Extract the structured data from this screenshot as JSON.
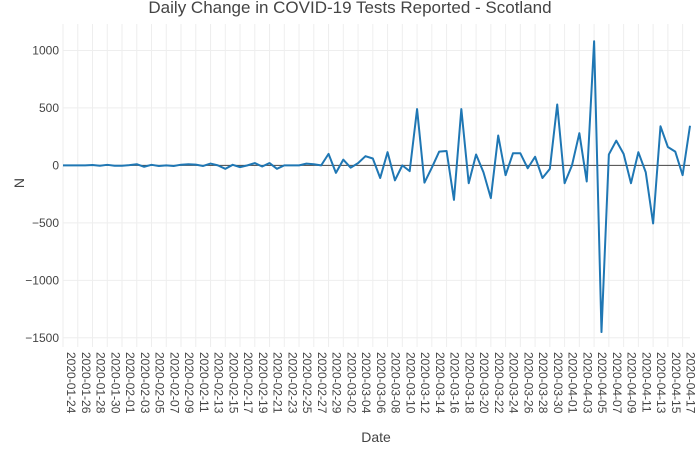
{
  "chart_data": {
    "type": "line",
    "title": "Daily Change in COVID-19 Tests Reported - Scotland",
    "xlabel": "Date",
    "ylabel": "N",
    "start_date": "2020-01-24",
    "end_date": "2020-04-18",
    "ylim": [
      -1580,
      1230
    ],
    "yticks": [
      -1500,
      -1000,
      -500,
      0,
      500,
      1000
    ],
    "ytick_labels": [
      "−1500",
      "−1000",
      "−500",
      "0",
      "500",
      "1000"
    ],
    "xticks": [
      "2020-01-24",
      "2020-01-26",
      "2020-01-28",
      "2020-01-30",
      "2020-02-01",
      "2020-02-03",
      "2020-02-05",
      "2020-02-07",
      "2020-02-09",
      "2020-02-11",
      "2020-02-13",
      "2020-02-15",
      "2020-02-17",
      "2020-02-19",
      "2020-02-21",
      "2020-02-23",
      "2020-02-25",
      "2020-02-27",
      "2020-02-29",
      "2020-03-02",
      "2020-03-04",
      "2020-03-06",
      "2020-03-08",
      "2020-03-10",
      "2020-03-12",
      "2020-03-14",
      "2020-03-16",
      "2020-03-18",
      "2020-03-20",
      "2020-03-22",
      "2020-03-24",
      "2020-03-26",
      "2020-03-28",
      "2020-03-30",
      "2020-04-01",
      "2020-04-03",
      "2020-04-05",
      "2020-04-07",
      "2020-04-09",
      "2020-04-11",
      "2020-04-13",
      "2020-04-15",
      "2020-04-17"
    ],
    "grid": true,
    "line_color": "#1f77b4",
    "series": [
      {
        "name": "",
        "values": [
          0,
          0,
          0,
          0,
          3,
          -3,
          5,
          -3,
          -3,
          2,
          10,
          -12,
          5,
          -5,
          0,
          -5,
          6,
          10,
          7,
          -5,
          16,
          0,
          -30,
          5,
          -15,
          0,
          20,
          -10,
          20,
          -30,
          0,
          0,
          0,
          15,
          10,
          0,
          100,
          -65,
          50,
          -20,
          20,
          80,
          60,
          -110,
          115,
          -130,
          0,
          -50,
          490,
          -150,
          -20,
          120,
          125,
          -300,
          490,
          -155,
          95,
          -60,
          -285,
          260,
          -85,
          105,
          105,
          -25,
          75,
          -110,
          -30,
          530,
          -155,
          0,
          280,
          -140,
          1080,
          -1450,
          95,
          215,
          100,
          -155,
          115,
          -60,
          -505,
          340,
          160,
          120,
          -85,
          345
        ]
      }
    ]
  }
}
